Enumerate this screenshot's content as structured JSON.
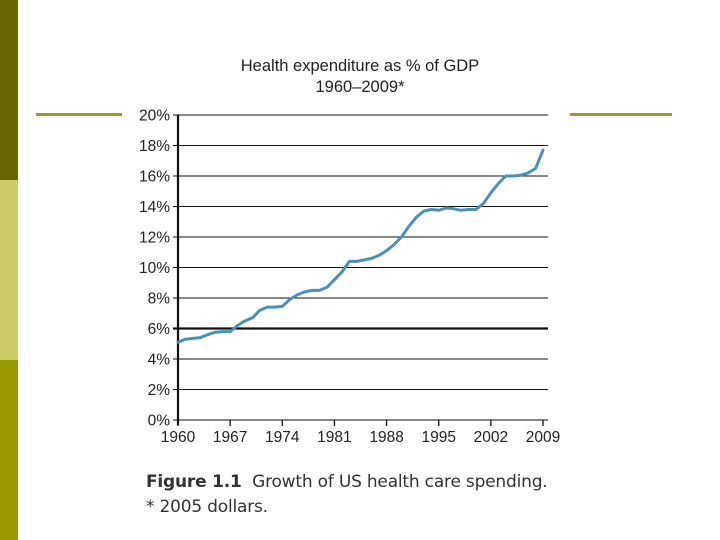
{
  "slide": {
    "sidebar_colors": [
      "#666600",
      "#cccc66",
      "#999900"
    ],
    "accent_line_color": "#999933"
  },
  "caption": {
    "figure_label": "Figure 1.1",
    "figure_text": "Growth of US health care spending.",
    "footnote": "* 2005 dollars."
  },
  "chart_data": {
    "type": "line",
    "title": "Health expenditure as % of GDP",
    "subtitle": "1960–2009*",
    "xlabel": "",
    "ylabel": "",
    "xlim": [
      1960,
      2009
    ],
    "ylim": [
      0,
      20
    ],
    "grid": true,
    "x_ticks": [
      1960,
      1967,
      1974,
      1981,
      1988,
      1995,
      2002,
      2009
    ],
    "x_tick_labels": [
      "1960",
      "1967",
      "1974",
      "1981",
      "1988",
      "1995",
      "2002",
      "2009"
    ],
    "y_ticks": [
      0,
      2,
      4,
      6,
      8,
      10,
      12,
      14,
      16,
      18,
      20
    ],
    "y_tick_labels": [
      "0%",
      "2%",
      "4%",
      "6%",
      "8%",
      "10%",
      "12%",
      "14%",
      "16%",
      "18%",
      "20%"
    ],
    "emphasized_gridline": 6,
    "series": [
      {
        "name": "Health expenditure as % of GDP",
        "color": "#4a90b8",
        "x": [
          1960,
          1961,
          1962,
          1963,
          1964,
          1965,
          1966,
          1967,
          1968,
          1969,
          1970,
          1971,
          1972,
          1973,
          1974,
          1975,
          1976,
          1977,
          1978,
          1979,
          1980,
          1981,
          1982,
          1983,
          1984,
          1985,
          1986,
          1987,
          1988,
          1989,
          1990,
          1991,
          1992,
          1993,
          1994,
          1995,
          1996,
          1997,
          1998,
          1999,
          2000,
          2001,
          2002,
          2003,
          2004,
          2005,
          2006,
          2007,
          2008,
          2009
        ],
        "values": [
          5.1,
          5.3,
          5.35,
          5.4,
          5.6,
          5.75,
          5.8,
          5.8,
          6.2,
          6.5,
          6.7,
          7.2,
          7.4,
          7.4,
          7.45,
          7.9,
          8.2,
          8.4,
          8.5,
          8.5,
          8.7,
          9.2,
          9.7,
          10.4,
          10.4,
          10.5,
          10.6,
          10.8,
          11.1,
          11.5,
          12.0,
          12.7,
          13.3,
          13.7,
          13.8,
          13.75,
          13.9,
          13.85,
          13.75,
          13.8,
          13.8,
          14.2,
          14.9,
          15.5,
          16.0,
          16.0,
          16.05,
          16.2,
          16.5,
          17.7
        ]
      }
    ]
  }
}
